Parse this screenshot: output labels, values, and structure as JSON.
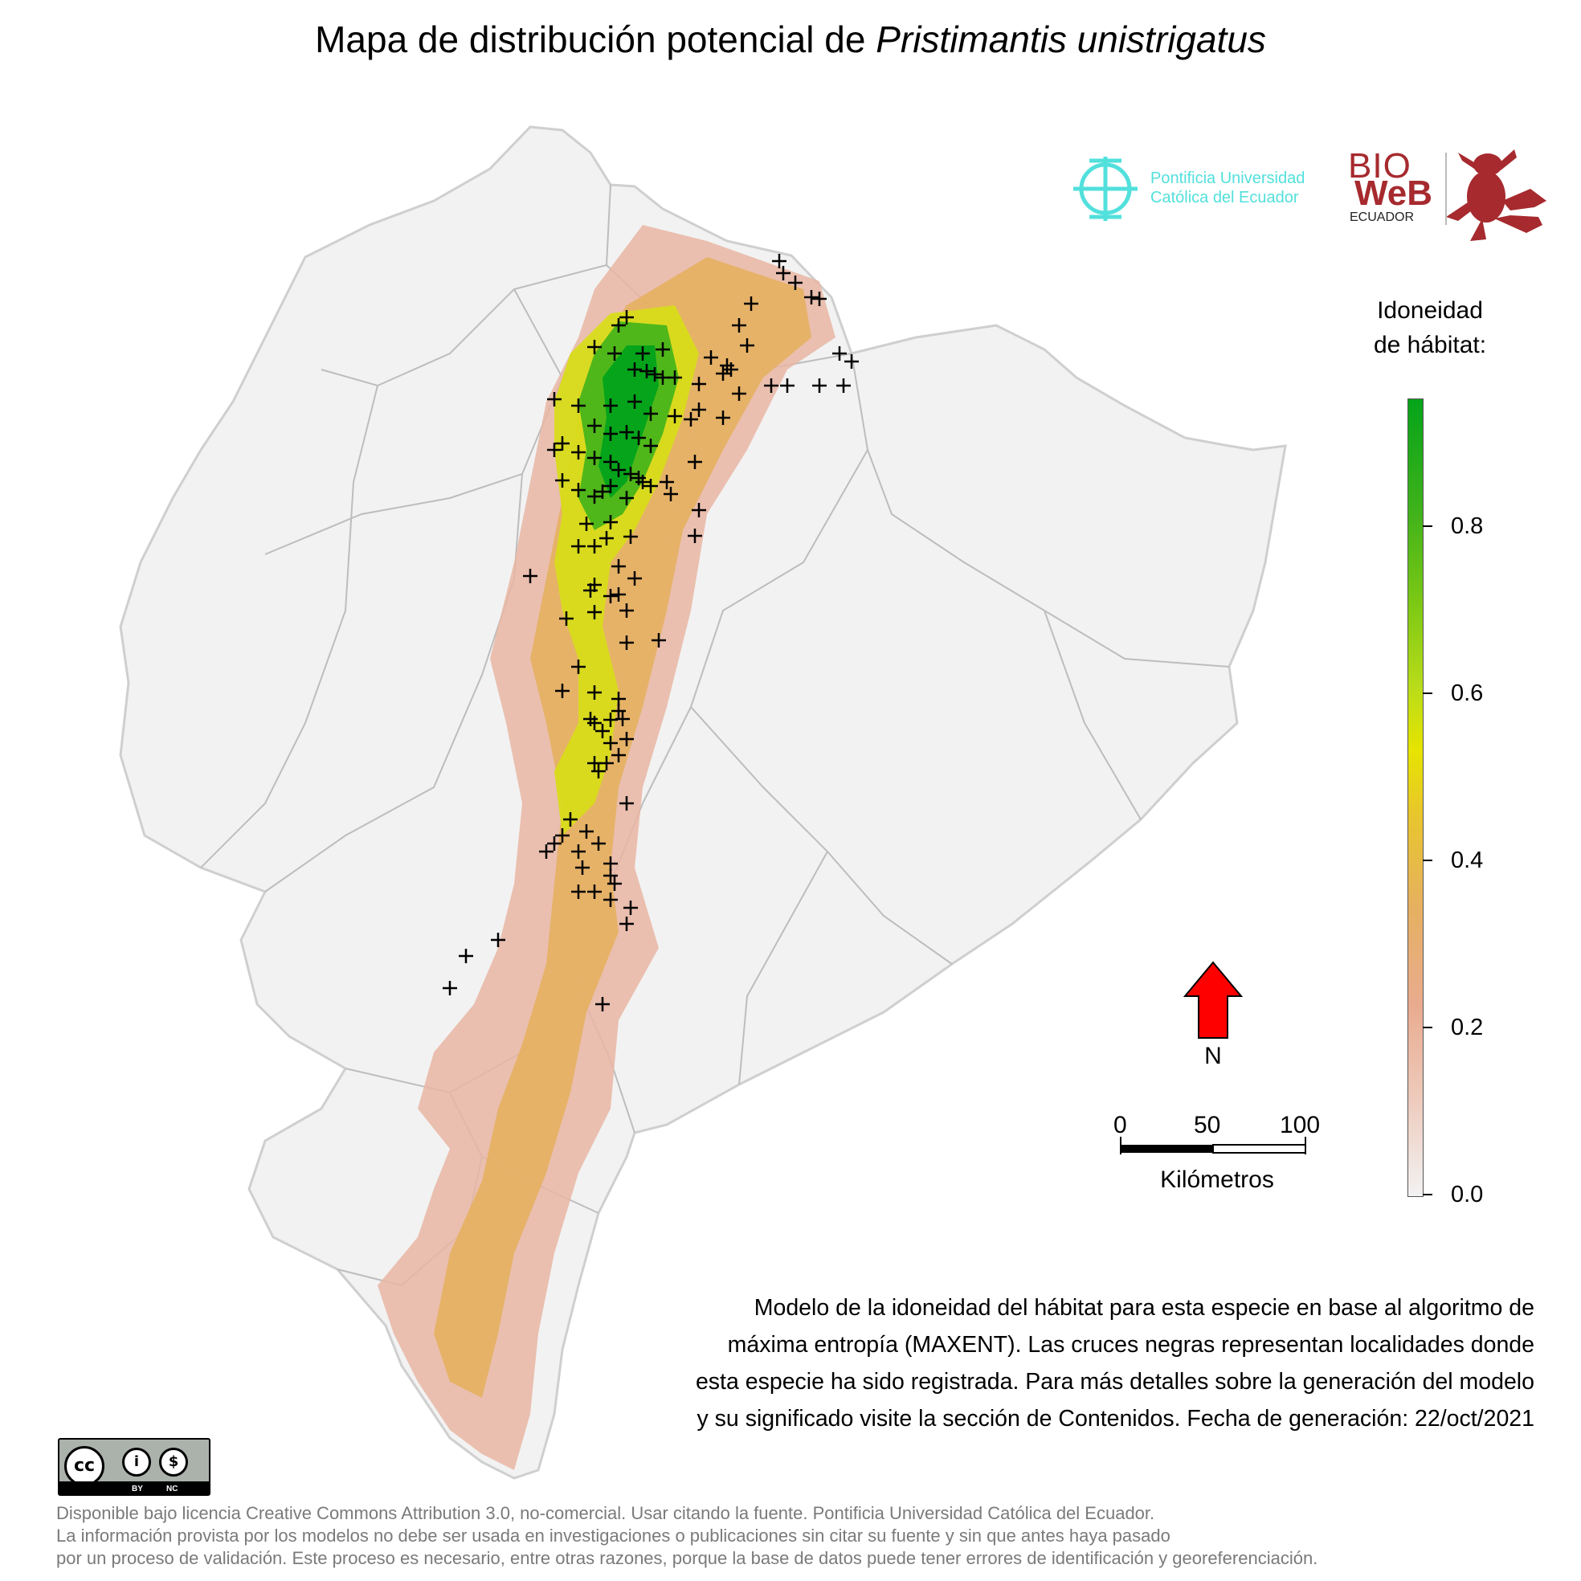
{
  "title": {
    "prefix": "Mapa de distribución potencial de ",
    "species": "Pristimantis unistrigatus"
  },
  "logos": {
    "puce_line1": "Pontificia Universidad",
    "puce_line2": "Católica del Ecuador",
    "bioweb_line1": "BIO",
    "bioweb_line2": "WeB",
    "bioweb_line3": "ECUADOR"
  },
  "legend": {
    "title_line1": "Idoneidad",
    "title_line2": "de hábitat:",
    "ticks": [
      "0.0",
      "0.2",
      "0.4",
      "0.6",
      "0.8"
    ],
    "color_low": "#f2f2f2",
    "color_mid": "#e6e400",
    "color_high": "#05a41a"
  },
  "north_arrow": {
    "label": "N",
    "color": "#ff0000"
  },
  "scale_bar": {
    "labels": [
      "0",
      "50",
      "100"
    ],
    "unit": "Kilómetros"
  },
  "description": [
    "Modelo de la idoneidad del hábitat para esta especie en base al algoritmo de",
    "máxima entropía (MAXENT). Las cruces negras representan localidades donde",
    "esta especie ha sido registrada. Para más detalles sobre la generación del modelo",
    "y su significado visite la sección de Contenidos. Fecha de generación: 22/oct/2021"
  ],
  "license_badge": {
    "by": "BY",
    "nc": "NC"
  },
  "footer": [
    "Disponible bajo licencia Creative Commons Attribution 3.0, no-comercial. Usar citando la fuente. Pontificia Universidad Católica del Ecuador.",
    "La información provista por los modelos no debe ser usada en investigaciones o publicaciones sin citar su fuente y sin que antes haya pasado",
    "por un proceso de validación. Este proceso es necesario, entre otras razones, porque la base de datos puede tener errores de identificación y georeferenciación."
  ]
}
